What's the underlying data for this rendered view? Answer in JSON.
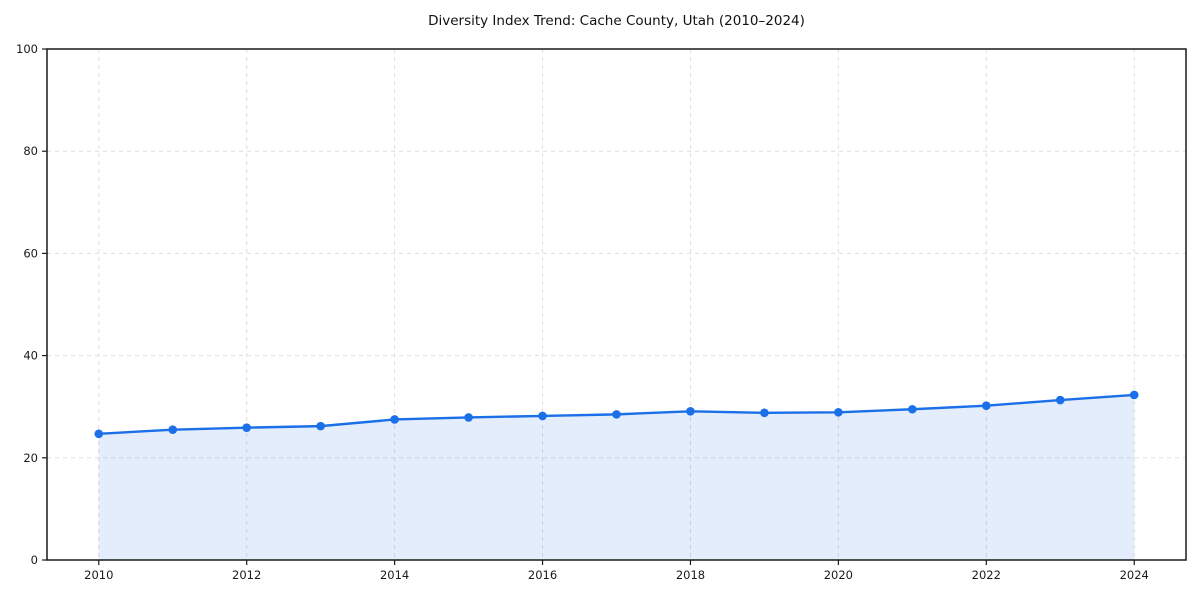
{
  "chart_data": {
    "type": "area",
    "title": "Diversity Index Trend: Cache County, Utah (2010–2024)",
    "x": [
      2010,
      2011,
      2012,
      2013,
      2014,
      2015,
      2016,
      2017,
      2018,
      2019,
      2020,
      2021,
      2022,
      2023,
      2024
    ],
    "series": [
      {
        "name": "Diversity Index",
        "values": [
          24.7,
          25.5,
          25.9,
          26.2,
          27.5,
          27.9,
          28.2,
          28.5,
          29.1,
          28.8,
          28.9,
          29.5,
          30.2,
          31.3,
          32.3
        ]
      }
    ],
    "xlabel": "",
    "ylabel": "",
    "xlim": [
      2009.3,
      2024.7
    ],
    "ylim": [
      0,
      100
    ],
    "xticks": [
      2010,
      2012,
      2014,
      2016,
      2018,
      2020,
      2022,
      2024
    ],
    "yticks": [
      0,
      20,
      40,
      60,
      80,
      100
    ],
    "grid": true,
    "grid_style": "dashed",
    "legend_position": "none",
    "marker_shape": "circle",
    "colors": {
      "line": "#1b6fe8",
      "marker": "#1b6fe8",
      "fill": "#1b6fe8",
      "fill_opacity": 0.12,
      "grid": "#dedede",
      "spine": "#1a1a1a",
      "tick_label": "#1a1a1a",
      "title": "#111111",
      "background": "#ffffff"
    }
  }
}
